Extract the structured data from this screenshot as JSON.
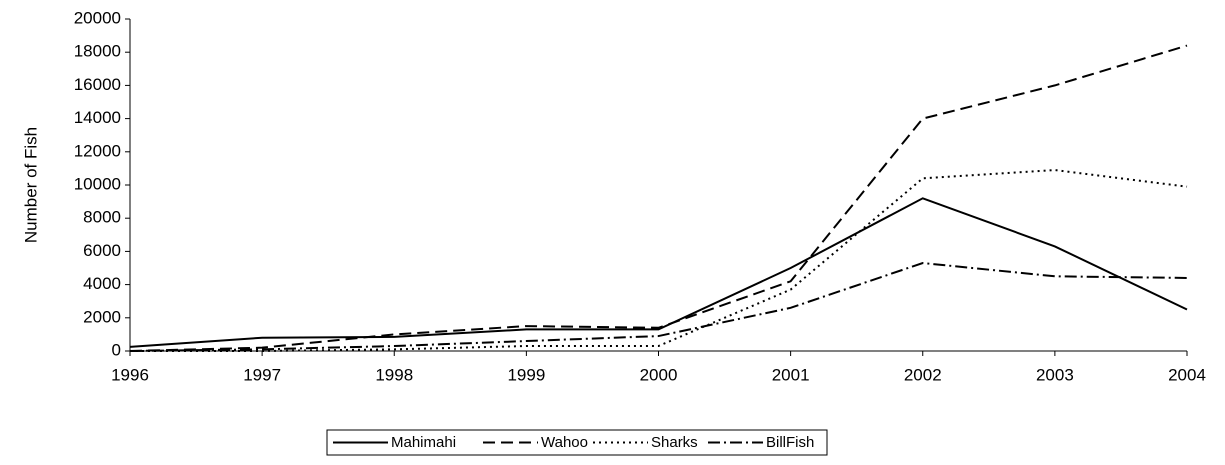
{
  "chart_data": {
    "type": "line",
    "y_label": "Number of Fish",
    "x": [
      1996,
      1997,
      1998,
      1999,
      2000,
      2001,
      2002,
      2003,
      2004
    ],
    "xlim": [
      1996,
      2004
    ],
    "xticks": [
      1996,
      1997,
      1998,
      1999,
      2000,
      2001,
      2002,
      2003,
      2004
    ],
    "ylim": [
      0,
      20000
    ],
    "yticks": [
      0,
      2000,
      4000,
      6000,
      8000,
      10000,
      12000,
      14000,
      16000,
      18000,
      20000
    ],
    "series": [
      {
        "name": "Mahimahi",
        "color": "#000000",
        "dash": "none",
        "values": [
          250,
          800,
          850,
          1300,
          1300,
          5000,
          9200,
          6300,
          2500
        ]
      },
      {
        "name": "Wahoo",
        "color": "#000000",
        "dash": "12,6",
        "values": [
          0,
          200,
          1000,
          1500,
          1400,
          4200,
          14000,
          16000,
          18400
        ]
      },
      {
        "name": "Sharks",
        "color": "#000000",
        "dash": "2,4",
        "values": [
          0,
          0,
          100,
          300,
          300,
          3700,
          10400,
          10900,
          9900
        ]
      },
      {
        "name": "BillFish",
        "color": "#000000",
        "dash": "12,4,2,4",
        "values": [
          0,
          100,
          300,
          600,
          900,
          2600,
          5300,
          4500,
          4400
        ]
      }
    ]
  }
}
